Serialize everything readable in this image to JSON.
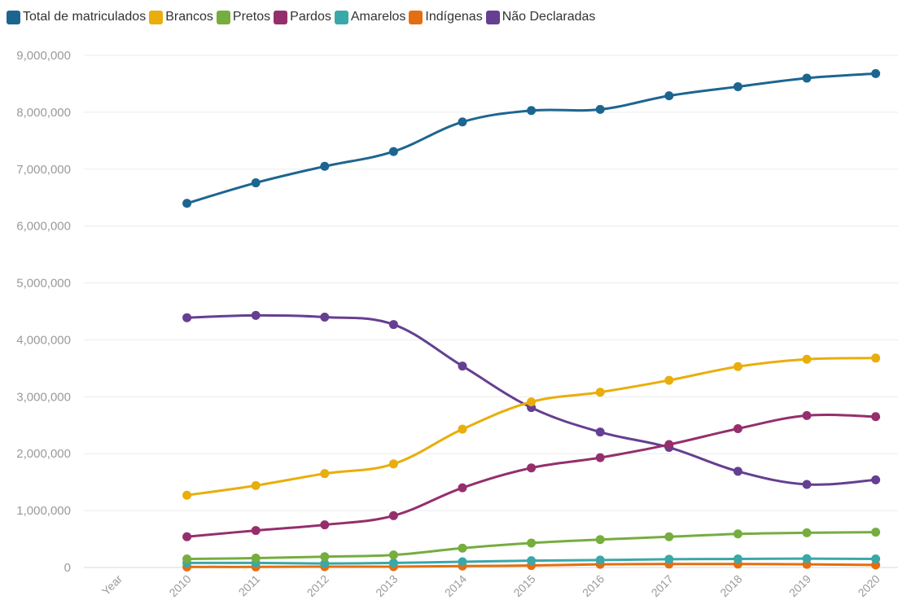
{
  "chart_data": {
    "type": "line",
    "title": "",
    "xlabel": "",
    "ylabel": "",
    "categories": [
      "Year",
      "2010",
      "2011",
      "2012",
      "2013",
      "2014",
      "2015",
      "2016",
      "2017",
      "2018",
      "2019",
      "2020"
    ],
    "ylim": [
      0,
      9000000
    ],
    "yticks": [
      0,
      1000000,
      2000000,
      3000000,
      4000000,
      5000000,
      6000000,
      7000000,
      8000000,
      9000000
    ],
    "ytick_labels": [
      "0",
      "1,000,000",
      "2,000,000",
      "3,000,000",
      "4,000,000",
      "5,000,000",
      "6,000,000",
      "7,000,000",
      "8,000,000",
      "9,000,000"
    ],
    "grid": true,
    "legend_position": "top-left",
    "series": [
      {
        "name": "Total de matriculados",
        "color": "#1d6591",
        "values": [
          null,
          6400000,
          6760000,
          7050000,
          7310000,
          7830000,
          8030000,
          8050000,
          8290000,
          8450000,
          8600000,
          8680000
        ]
      },
      {
        "name": "Brancos",
        "color": "#e9ae0b",
        "values": [
          null,
          1270000,
          1440000,
          1650000,
          1820000,
          2430000,
          2910000,
          3080000,
          3290000,
          3530000,
          3660000,
          3680000
        ]
      },
      {
        "name": "Pretos",
        "color": "#76ad3f",
        "values": [
          null,
          150000,
          165000,
          190000,
          220000,
          340000,
          430000,
          490000,
          540000,
          590000,
          610000,
          620000
        ]
      },
      {
        "name": "Pardos",
        "color": "#952f6c",
        "values": [
          null,
          540000,
          650000,
          750000,
          910000,
          1400000,
          1750000,
          1930000,
          2160000,
          2440000,
          2670000,
          2650000
        ]
      },
      {
        "name": "Amarelos",
        "color": "#3aa8a8",
        "values": [
          null,
          80000,
          80000,
          70000,
          80000,
          100000,
          120000,
          130000,
          145000,
          150000,
          155000,
          150000
        ]
      },
      {
        "name": "Indígenas",
        "color": "#e56e10",
        "values": [
          null,
          10000,
          10000,
          15000,
          15000,
          25000,
          35000,
          55000,
          60000,
          60000,
          55000,
          45000
        ]
      },
      {
        "name": "Não Declaradas",
        "color": "#653f91",
        "values": [
          null,
          4390000,
          4430000,
          4400000,
          4270000,
          3540000,
          2810000,
          2380000,
          2110000,
          1690000,
          1460000,
          1540000
        ]
      }
    ]
  }
}
